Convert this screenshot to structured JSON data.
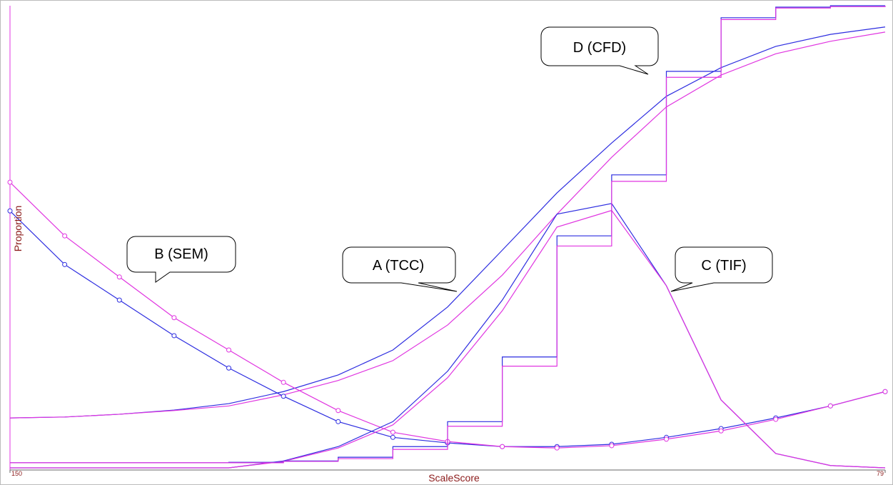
{
  "chart_data": {
    "type": "line",
    "x_label": "ScaleScore",
    "y_label": "Proportion",
    "annotations": [
      "A (TCC)",
      "B (SEM)",
      "C (TIF)",
      "D (CFD)"
    ],
    "x": [
      150,
      190,
      230,
      270,
      310,
      350,
      390,
      430,
      470,
      510,
      550,
      590,
      630,
      670,
      710,
      750,
      790
    ],
    "xlim": [
      150,
      790
    ],
    "ylim": [
      0,
      1
    ],
    "xticks": [
      150,
      {
        "value": 790,
        "label": "79"
      }
    ],
    "series": [
      {
        "color": "#2d2de0",
        "style": "line",
        "values": [
          0.108,
          0.11,
          0.116,
          0.125,
          0.139,
          0.165,
          0.201,
          0.255,
          0.348,
          0.471,
          0.595,
          0.703,
          0.804,
          0.866,
          0.912,
          0.938,
          0.954
        ]
      },
      {
        "color": "#e035e0",
        "style": "line",
        "values": [
          0.108,
          0.11,
          0.116,
          0.124,
          0.134,
          0.158,
          0.189,
          0.232,
          0.309,
          0.417,
          0.549,
          0.672,
          0.781,
          0.85,
          0.896,
          0.923,
          0.943
        ]
      },
      {
        "color": "#2d2de0",
        "style": "markers",
        "values": [
          0.556,
          0.44,
          0.363,
          0.286,
          0.216,
          0.155,
          0.1,
          0.066,
          0.054,
          0.046,
          0.046,
          0.051,
          0.066,
          0.085,
          0.108,
          0.134,
          0.165
        ]
      },
      {
        "color": "#e035e0",
        "style": "markers",
        "values": [
          0.618,
          0.502,
          0.413,
          0.325,
          0.255,
          0.185,
          0.124,
          0.077,
          0.057,
          0.046,
          0.043,
          0.048,
          0.062,
          0.08,
          0.105,
          0.134,
          0.165
        ]
      },
      {
        "color": "#2d2de0",
        "style": "line",
        "values": [
          0,
          0,
          0,
          0,
          0,
          0.015,
          0.046,
          0.1,
          0.209,
          0.363,
          0.549,
          0.572,
          0.394,
          0.147,
          0.031,
          0.005,
          0
        ]
      },
      {
        "color": "#e035e0",
        "style": "line",
        "values": [
          0,
          0,
          0,
          0,
          0,
          0.014,
          0.043,
          0.093,
          0.195,
          0.34,
          0.521,
          0.557,
          0.394,
          0.147,
          0.031,
          0.005,
          0
        ]
      },
      {
        "color": "#2d2de0",
        "style": "step",
        "values": [
          0.011,
          0.011,
          0.011,
          0.011,
          0.012,
          0.015,
          0.023,
          0.046,
          0.1,
          0.24,
          0.502,
          0.634,
          0.858,
          0.974,
          0.997,
          1.0,
          1.0
        ]
      },
      {
        "color": "#e035e0",
        "style": "step",
        "values": [
          0.011,
          0.011,
          0.011,
          0.011,
          0.011,
          0.014,
          0.02,
          0.04,
          0.09,
          0.22,
          0.48,
          0.62,
          0.845,
          0.97,
          0.995,
          0.998,
          1.0
        ]
      }
    ]
  }
}
